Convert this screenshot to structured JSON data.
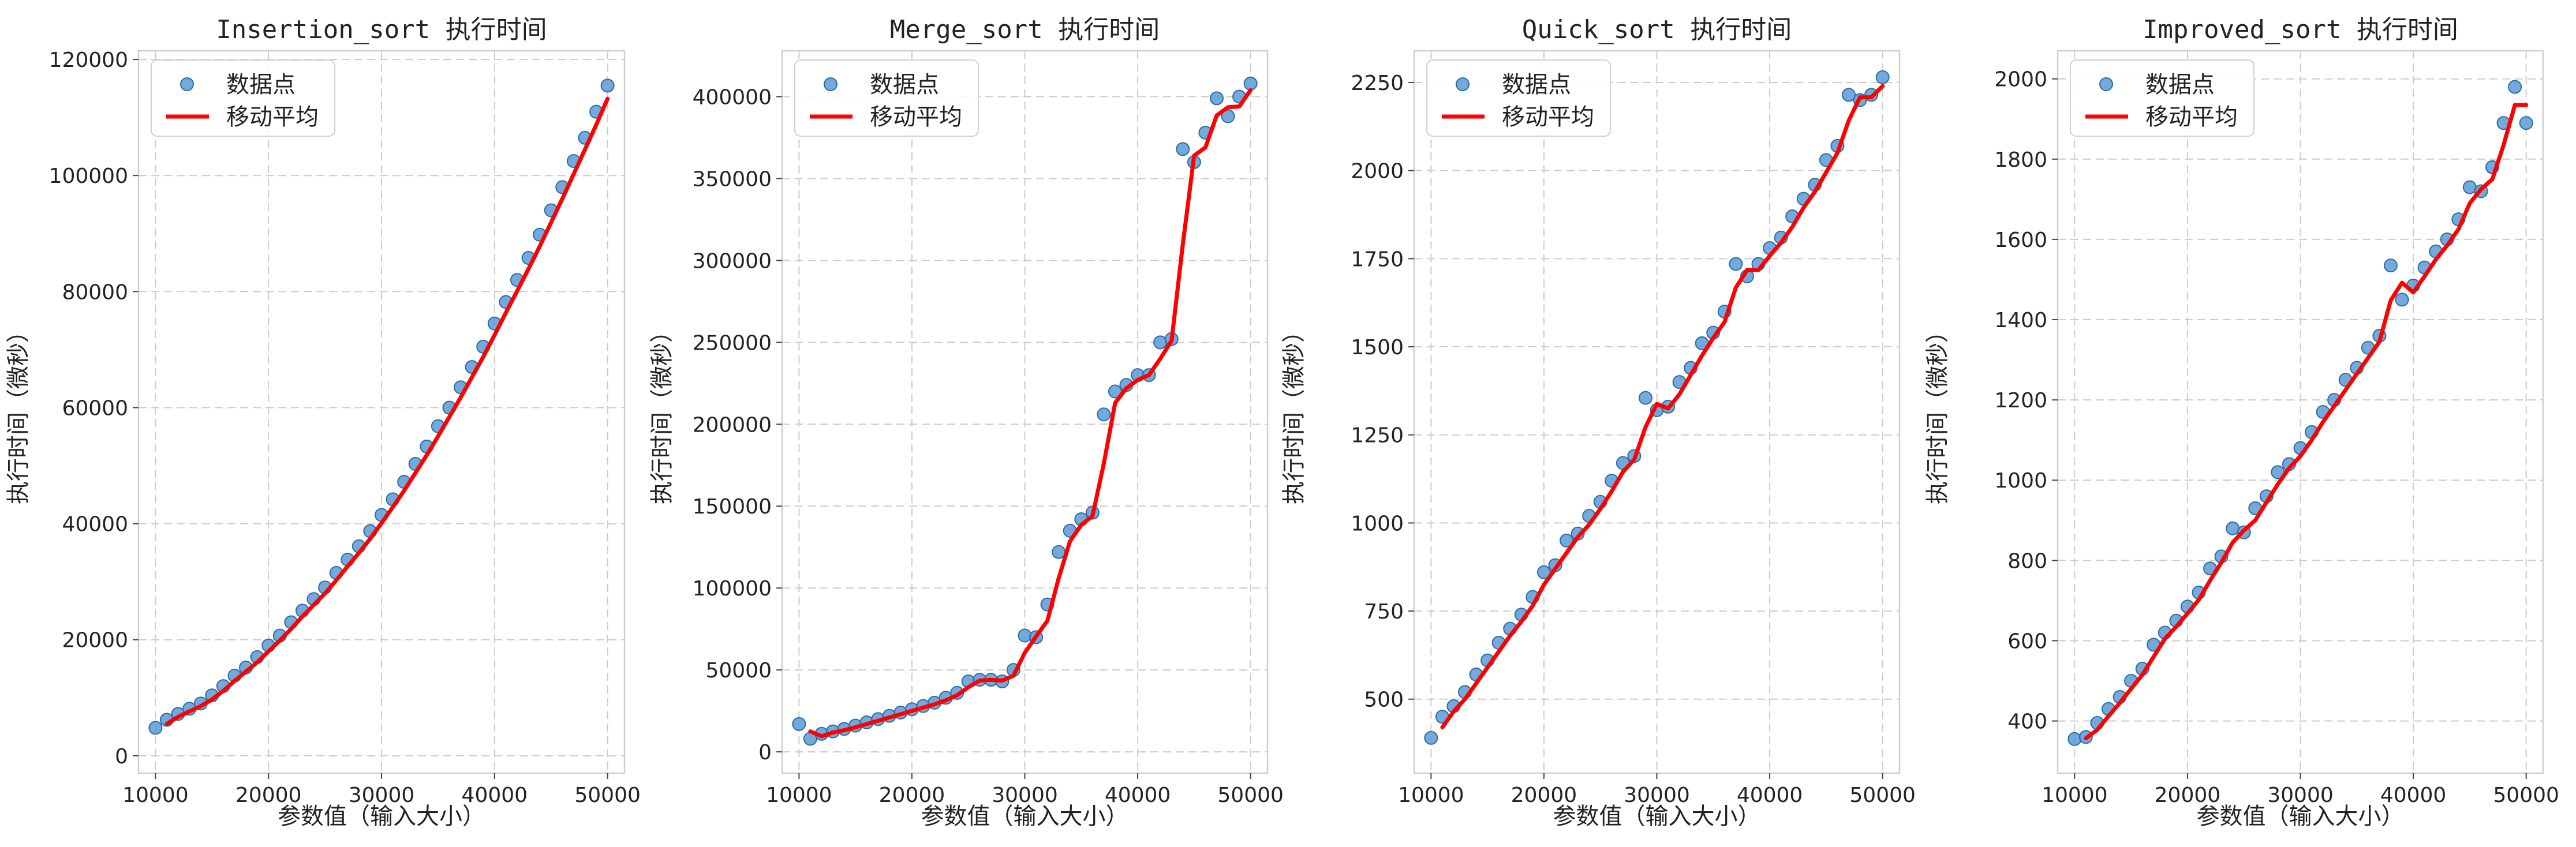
{
  "colors": {
    "points": "#5b9bd5",
    "points_edge": "#2b6ca8",
    "line": "#ff0000",
    "grid": "#cccccc",
    "frame": "#cfcfcf"
  },
  "chart_data": [
    {
      "type": "scatter",
      "title": "Insertion_sort 执行时间",
      "xlabel": "参数值（输入大小）",
      "ylabel": "执行时间（微秒）",
      "xlim": [
        8500,
        51500
      ],
      "ylim": [
        -3000,
        121500
      ],
      "xticks": [
        10000,
        20000,
        30000,
        40000,
        50000
      ],
      "yticks": [
        0,
        20000,
        40000,
        60000,
        80000,
        100000,
        120000
      ],
      "grid": true,
      "legend_position": "top-left",
      "legend": [
        "数据点",
        "移动平均"
      ],
      "series": [
        {
          "name": "数据点",
          "kind": "scatter",
          "x": [
            10000,
            11000,
            12000,
            13000,
            14000,
            15000,
            16000,
            17000,
            18000,
            19000,
            20000,
            21000,
            22000,
            23000,
            24000,
            25000,
            26000,
            27000,
            28000,
            29000,
            30000,
            31000,
            32000,
            33000,
            34000,
            35000,
            36000,
            37000,
            38000,
            39000,
            40000,
            41000,
            42000,
            43000,
            44000,
            45000,
            46000,
            47000,
            48000,
            49000,
            50000
          ],
          "y": [
            4800,
            6200,
            7200,
            8100,
            9000,
            10400,
            12000,
            13800,
            15200,
            17000,
            19000,
            20700,
            23000,
            25000,
            27000,
            29000,
            31500,
            33800,
            36100,
            38700,
            41500,
            44200,
            47200,
            50300,
            53300,
            56800,
            60000,
            63500,
            67000,
            70500,
            74500,
            78200,
            82000,
            85800,
            89800,
            94000,
            98000,
            102500,
            106500,
            111000,
            115500
          ]
        },
        {
          "name": "移动平均",
          "kind": "line",
          "x": [
            11000,
            12000,
            13000,
            14000,
            15000,
            16000,
            17000,
            18000,
            19000,
            20000,
            21000,
            22000,
            23000,
            24000,
            25000,
            26000,
            27000,
            28000,
            29000,
            30000,
            31000,
            32000,
            33000,
            34000,
            35000,
            36000,
            37000,
            38000,
            39000,
            40000,
            41000,
            42000,
            43000,
            44000,
            45000,
            46000,
            47000,
            48000,
            49000,
            50000
          ],
          "y": [
            5500,
            6700,
            7650,
            8550,
            9700,
            11200,
            12900,
            14500,
            16100,
            18000,
            19850,
            21850,
            24000,
            26000,
            28000,
            30250,
            32650,
            34950,
            37400,
            40100,
            42850,
            45700,
            48750,
            51800,
            55050,
            58400,
            61750,
            65250,
            68750,
            72500,
            76350,
            80100,
            83900,
            87800,
            91900,
            96000,
            100250,
            104500,
            108750,
            113250
          ]
        }
      ]
    },
    {
      "type": "scatter",
      "title": "Merge_sort 执行时间",
      "xlabel": "参数值（输入大小）",
      "ylabel": "执行时间（微秒）",
      "xlim": [
        8500,
        51500
      ],
      "ylim": [
        -13000,
        428000
      ],
      "xticks": [
        10000,
        20000,
        30000,
        40000,
        50000
      ],
      "yticks": [
        0,
        50000,
        100000,
        150000,
        200000,
        250000,
        300000,
        350000,
        400000
      ],
      "grid": true,
      "legend_position": "top-left",
      "legend": [
        "数据点",
        "移动平均"
      ],
      "series": [
        {
          "name": "数据点",
          "kind": "scatter",
          "x": [
            10000,
            11000,
            12000,
            13000,
            14000,
            15000,
            16000,
            17000,
            18000,
            19000,
            20000,
            21000,
            22000,
            23000,
            24000,
            25000,
            26000,
            27000,
            28000,
            29000,
            30000,
            31000,
            32000,
            33000,
            34000,
            35000,
            36000,
            37000,
            38000,
            39000,
            40000,
            41000,
            42000,
            43000,
            44000,
            45000,
            46000,
            47000,
            48000,
            49000,
            50000
          ],
          "y": [
            17000,
            8000,
            11000,
            12500,
            14000,
            16000,
            18000,
            20000,
            22000,
            24000,
            26000,
            28000,
            30000,
            33000,
            36000,
            43000,
            44000,
            44000,
            43000,
            50000,
            71000,
            70000,
            90000,
            122000,
            135000,
            142000,
            146000,
            206000,
            220000,
            224000,
            230000,
            230000,
            250000,
            252000,
            368000,
            360000,
            378000,
            399000,
            388000,
            400000,
            408000
          ]
        },
        {
          "name": "移动平均",
          "kind": "line",
          "x": [
            11000,
            12000,
            13000,
            14000,
            15000,
            16000,
            17000,
            18000,
            19000,
            20000,
            21000,
            22000,
            23000,
            24000,
            25000,
            26000,
            27000,
            28000,
            29000,
            30000,
            31000,
            32000,
            33000,
            34000,
            35000,
            36000,
            37000,
            38000,
            39000,
            40000,
            41000,
            42000,
            43000,
            44000,
            45000,
            46000,
            47000,
            48000,
            49000,
            50000
          ],
          "y": [
            12500,
            9500,
            11750,
            13250,
            15000,
            17000,
            19000,
            21000,
            23000,
            25000,
            27000,
            29000,
            31500,
            34500,
            39500,
            43500,
            44000,
            43500,
            46500,
            60500,
            70500,
            80000,
            106000,
            128500,
            138500,
            144000,
            176000,
            213000,
            222000,
            227000,
            230000,
            240000,
            251000,
            310000,
            364000,
            369000,
            388500,
            393500,
            394000,
            404000
          ]
        }
      ]
    },
    {
      "type": "scatter",
      "title": "Quick_sort 执行时间",
      "xlabel": "参数值（输入大小）",
      "ylabel": "执行时间（微秒）",
      "xlim": [
        8500,
        51500
      ],
      "ylim": [
        290,
        2340
      ],
      "xticks": [
        10000,
        20000,
        30000,
        40000,
        50000
      ],
      "yticks": [
        500,
        750,
        1000,
        1250,
        1500,
        1750,
        2000,
        2250
      ],
      "grid": true,
      "legend_position": "top-left",
      "legend": [
        "数据点",
        "移动平均"
      ],
      "series": [
        {
          "name": "数据点",
          "kind": "scatter",
          "x": [
            10000,
            11000,
            12000,
            13000,
            14000,
            15000,
            16000,
            17000,
            18000,
            19000,
            20000,
            21000,
            22000,
            23000,
            24000,
            25000,
            26000,
            27000,
            28000,
            29000,
            30000,
            31000,
            32000,
            33000,
            34000,
            35000,
            36000,
            37000,
            38000,
            39000,
            40000,
            41000,
            42000,
            43000,
            44000,
            45000,
            46000,
            47000,
            48000,
            49000,
            50000
          ],
          "y": [
            390,
            450,
            480,
            520,
            570,
            610,
            660,
            700,
            740,
            790,
            860,
            880,
            950,
            970,
            1020,
            1060,
            1120,
            1170,
            1190,
            1355,
            1320,
            1330,
            1400,
            1440,
            1510,
            1540,
            1600,
            1735,
            1700,
            1735,
            1780,
            1810,
            1870,
            1920,
            1960,
            2030,
            2070,
            2215,
            2200,
            2215,
            2265
          ]
        },
        {
          "name": "移动平均",
          "kind": "line",
          "x": [
            11000,
            12000,
            13000,
            14000,
            15000,
            16000,
            17000,
            18000,
            19000,
            20000,
            21000,
            22000,
            23000,
            24000,
            25000,
            26000,
            27000,
            28000,
            29000,
            30000,
            31000,
            32000,
            33000,
            34000,
            35000,
            36000,
            37000,
            38000,
            39000,
            40000,
            41000,
            42000,
            43000,
            44000,
            45000,
            46000,
            47000,
            48000,
            49000,
            50000
          ],
          "y": [
            420,
            465,
            500,
            545,
            590,
            635,
            680,
            720,
            765,
            825,
            870,
            915,
            960,
            995,
            1040,
            1090,
            1145,
            1180,
            1272,
            1338,
            1325,
            1365,
            1420,
            1475,
            1525,
            1570,
            1668,
            1718,
            1718,
            1758,
            1795,
            1840,
            1895,
            1940,
            1995,
            2050,
            2142,
            2208,
            2208,
            2240
          ]
        }
      ]
    },
    {
      "type": "scatter",
      "title": "Improved_sort 执行时间",
      "xlabel": "参数值（输入大小）",
      "ylabel": "执行时间（微秒）",
      "xlim": [
        8500,
        51500
      ],
      "ylim": [
        270,
        2070
      ],
      "xticks": [
        10000,
        20000,
        30000,
        40000,
        50000
      ],
      "yticks": [
        400,
        600,
        800,
        1000,
        1200,
        1400,
        1600,
        1800,
        2000
      ],
      "grid": true,
      "legend_position": "top-left",
      "legend": [
        "数据点",
        "移动平均"
      ],
      "series": [
        {
          "name": "数据点",
          "kind": "scatter",
          "x": [
            10000,
            11000,
            12000,
            13000,
            14000,
            15000,
            16000,
            17000,
            18000,
            19000,
            20000,
            21000,
            22000,
            23000,
            24000,
            25000,
            26000,
            27000,
            28000,
            29000,
            30000,
            31000,
            32000,
            33000,
            34000,
            35000,
            36000,
            37000,
            38000,
            39000,
            40000,
            41000,
            42000,
            43000,
            44000,
            45000,
            46000,
            47000,
            48000,
            49000,
            50000
          ],
          "y": [
            355,
            360,
            395,
            430,
            460,
            500,
            530,
            590,
            620,
            650,
            685,
            720,
            780,
            810,
            880,
            870,
            930,
            960,
            1020,
            1040,
            1080,
            1120,
            1170,
            1200,
            1250,
            1280,
            1330,
            1360,
            1535,
            1450,
            1485,
            1530,
            1570,
            1600,
            1650,
            1730,
            1720,
            1780,
            1890,
            1980,
            1890
          ]
        },
        {
          "name": "移动平均",
          "kind": "line",
          "x": [
            11000,
            12000,
            13000,
            14000,
            15000,
            16000,
            17000,
            18000,
            19000,
            20000,
            21000,
            22000,
            23000,
            24000,
            25000,
            26000,
            27000,
            28000,
            29000,
            30000,
            31000,
            32000,
            33000,
            34000,
            35000,
            36000,
            37000,
            38000,
            39000,
            40000,
            41000,
            42000,
            43000,
            44000,
            45000,
            46000,
            47000,
            48000,
            49000,
            50000
          ],
          "y": [
            357,
            378,
            412,
            445,
            480,
            515,
            560,
            605,
            635,
            668,
            702,
            750,
            795,
            845,
            875,
            900,
            945,
            990,
            1030,
            1060,
            1100,
            1145,
            1185,
            1225,
            1265,
            1305,
            1345,
            1448,
            1492,
            1468,
            1508,
            1550,
            1585,
            1625,
            1690,
            1725,
            1750,
            1835,
            1935,
            1935
          ]
        }
      ]
    }
  ]
}
